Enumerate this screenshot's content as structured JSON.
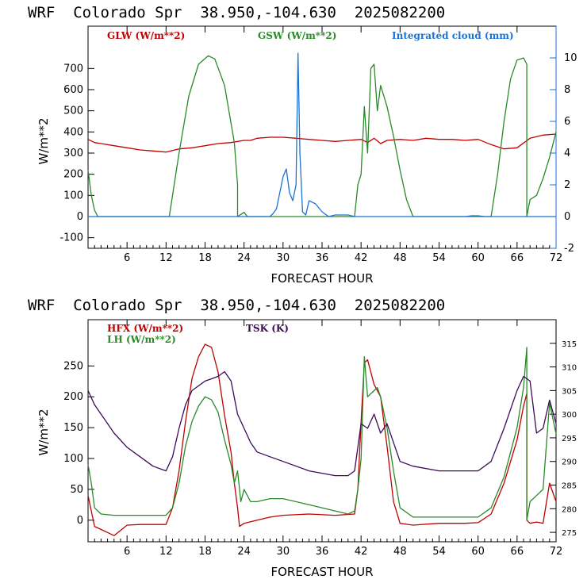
{
  "colors": {
    "glw": "#c00000",
    "gsw": "#2a8a2a",
    "cloud": "#1a73d6",
    "hfx": "#c00000",
    "lh": "#2a8a2a",
    "tsk": "#3d0a5a"
  },
  "chart_data": [
    {
      "type": "line",
      "title": "WRF  Colorado Spr  38.950,-104.630  2025082200",
      "xlabel": "FORECAST HOUR",
      "ylabel": "W/m**2",
      "y2label": "",
      "xlim": [
        0,
        72
      ],
      "ylim": [
        -150,
        900
      ],
      "y2lim": [
        -2,
        12
      ],
      "xticks": [
        "6",
        "12",
        "18",
        "24",
        "30",
        "36",
        "42",
        "48",
        "54",
        "60",
        "66",
        "72"
      ],
      "yticks": [
        "-100",
        "0",
        "100",
        "200",
        "300",
        "400",
        "500",
        "600",
        "700"
      ],
      "y2ticks": [
        "-2",
        "0",
        "2",
        "4",
        "6",
        "8",
        "10"
      ],
      "legend": [
        "GLW (W/m**2)",
        "GSW (W/m**2)",
        "Integrated cloud (mm)"
      ],
      "series": [
        {
          "name": "GLW (W/m**2)",
          "axis": "left",
          "x": [
            0,
            1,
            2,
            4,
            6,
            8,
            10,
            12,
            14,
            16,
            18,
            20,
            22,
            23,
            24,
            25,
            26,
            28,
            30,
            32,
            34,
            36,
            38,
            40,
            42,
            43,
            44,
            45,
            46,
            48,
            50,
            52,
            54,
            56,
            58,
            60,
            62,
            64,
            66,
            68,
            70,
            72
          ],
          "y": [
            365,
            350,
            345,
            335,
            325,
            315,
            310,
            305,
            320,
            325,
            335,
            345,
            350,
            355,
            360,
            360,
            370,
            375,
            375,
            370,
            365,
            360,
            355,
            360,
            365,
            350,
            370,
            345,
            360,
            365,
            360,
            370,
            365,
            365,
            360,
            365,
            340,
            320,
            325,
            370,
            385,
            390
          ]
        },
        {
          "name": "GSW (W/m**2)",
          "axis": "left",
          "x": [
            0,
            0.5,
            1,
            1.5,
            12.5,
            14,
            15.5,
            17,
            18.5,
            19.5,
            21,
            22.5,
            23,
            23,
            24,
            24.5,
            41,
            41.5,
            42,
            42.5,
            43,
            43.5,
            44,
            44.5,
            45,
            46,
            47,
            48,
            49,
            50,
            62,
            63,
            64,
            65,
            66,
            67,
            67.5,
            67.5,
            68,
            69,
            70,
            71,
            72
          ],
          "y": [
            220,
            100,
            30,
            0,
            0,
            300,
            570,
            720,
            760,
            745,
            620,
            350,
            150,
            0,
            20,
            0,
            0,
            150,
            200,
            520,
            300,
            700,
            720,
            500,
            620,
            520,
            380,
            220,
            80,
            0,
            0,
            200,
            450,
            650,
            740,
            750,
            720,
            0,
            80,
            100,
            180,
            280,
            400
          ]
        },
        {
          "name": "Integrated cloud (mm)",
          "axis": "right",
          "x": [
            0,
            28,
            28.5,
            29,
            30,
            30.5,
            31,
            31.5,
            32,
            32.3,
            32.6,
            33,
            33.5,
            34,
            35,
            36,
            37,
            38,
            40,
            41,
            58,
            59,
            60,
            61,
            72
          ],
          "y": [
            0,
            0,
            0.2,
            0.5,
            2.5,
            3.0,
            1.5,
            1.0,
            2.0,
            10.3,
            4.0,
            0.3,
            0.1,
            1.0,
            0.8,
            0.3,
            0,
            0.1,
            0.1,
            0,
            0,
            0.05,
            0.05,
            0,
            0
          ]
        }
      ]
    },
    {
      "type": "line",
      "title": "WRF  Colorado Spr  38.950,-104.630  2025082200",
      "xlabel": "FORECAST HOUR",
      "ylabel": "W/m**2",
      "y2label": "",
      "xlim": [
        0,
        72
      ],
      "ylim": [
        -35,
        325
      ],
      "y2lim": [
        273,
        320
      ],
      "xticks": [
        "6",
        "12",
        "18",
        "24",
        "30",
        "36",
        "42",
        "48",
        "54",
        "60",
        "66",
        "72"
      ],
      "yticks": [
        "0",
        "50",
        "100",
        "150",
        "200",
        "250"
      ],
      "y2ticks": [
        "275",
        "280",
        "285",
        "290",
        "295",
        "300",
        "305",
        "310",
        "315"
      ],
      "legend": [
        "HFX (W/m**2)",
        "LH  (W/m**2)",
        "TSK (K)"
      ],
      "series": [
        {
          "name": "HFX (W/m**2)",
          "axis": "left",
          "x": [
            0,
            1,
            3,
            4,
            6,
            8,
            12,
            13,
            14,
            15,
            16,
            17,
            18,
            19,
            20,
            21,
            22,
            22.5,
            23,
            23.3,
            24,
            26,
            28,
            30,
            34,
            38,
            41,
            41.5,
            42,
            42.5,
            43,
            44,
            45,
            46,
            47,
            48,
            50,
            54,
            58,
            60,
            62,
            64,
            66,
            67,
            67.5,
            67.5,
            68,
            69,
            70,
            71,
            72
          ],
          "y": [
            40,
            -10,
            -20,
            -25,
            -8,
            -7,
            -7,
            20,
            80,
            160,
            230,
            265,
            285,
            280,
            240,
            170,
            110,
            60,
            20,
            -10,
            -5,
            0,
            5,
            8,
            10,
            8,
            10,
            50,
            160,
            255,
            260,
            220,
            200,
            120,
            30,
            -5,
            -8,
            -5,
            -5,
            -4,
            10,
            60,
            130,
            185,
            205,
            0,
            -5,
            -3,
            -5,
            60,
            30
          ]
        },
        {
          "name": "LH  (W/m**2)",
          "axis": "left",
          "x": [
            0,
            0.5,
            1,
            2,
            4,
            8,
            12,
            13,
            14,
            15,
            16,
            17,
            18,
            19,
            20,
            21,
            22,
            22.5,
            23,
            23.5,
            24,
            25,
            26,
            28,
            30,
            34,
            38,
            40,
            41,
            41.5,
            42,
            42.5,
            43,
            44,
            44.5,
            45,
            46,
            47,
            48,
            50,
            54,
            58,
            60,
            62,
            64,
            66,
            67,
            67.5,
            67.5,
            68,
            69,
            70,
            71,
            72
          ],
          "y": [
            90,
            60,
            20,
            10,
            8,
            8,
            8,
            20,
            60,
            120,
            160,
            185,
            200,
            195,
            175,
            130,
            90,
            60,
            80,
            30,
            50,
            30,
            30,
            35,
            35,
            25,
            15,
            10,
            15,
            50,
            100,
            265,
            200,
            210,
            215,
            200,
            150,
            80,
            20,
            5,
            5,
            5,
            5,
            20,
            70,
            150,
            215,
            280,
            0,
            30,
            40,
            50,
            190,
            140
          ]
        },
        {
          "name": "TSK (K)",
          "axis": "right",
          "x": [
            0,
            1,
            2,
            4,
            6,
            8,
            10,
            12,
            13,
            14,
            15,
            16,
            17,
            18,
            19,
            20,
            21,
            22,
            23,
            24,
            25,
            26,
            28,
            30,
            34,
            38,
            40,
            41,
            42,
            43,
            44,
            45,
            46,
            47,
            48,
            50,
            54,
            58,
            60,
            62,
            64,
            66,
            67,
            68,
            69,
            70,
            71,
            72
          ],
          "y": [
            305,
            302,
            300,
            296,
            293,
            291,
            289,
            288,
            291,
            297,
            302,
            305,
            306,
            307,
            307.5,
            308,
            309,
            307,
            300,
            297,
            294,
            292,
            291,
            290,
            288,
            287,
            287,
            288,
            298,
            297,
            300,
            296,
            298,
            294,
            290,
            289,
            288,
            288,
            288,
            290,
            297,
            305,
            308,
            307,
            296,
            297,
            303,
            298
          ]
        }
      ]
    }
  ]
}
